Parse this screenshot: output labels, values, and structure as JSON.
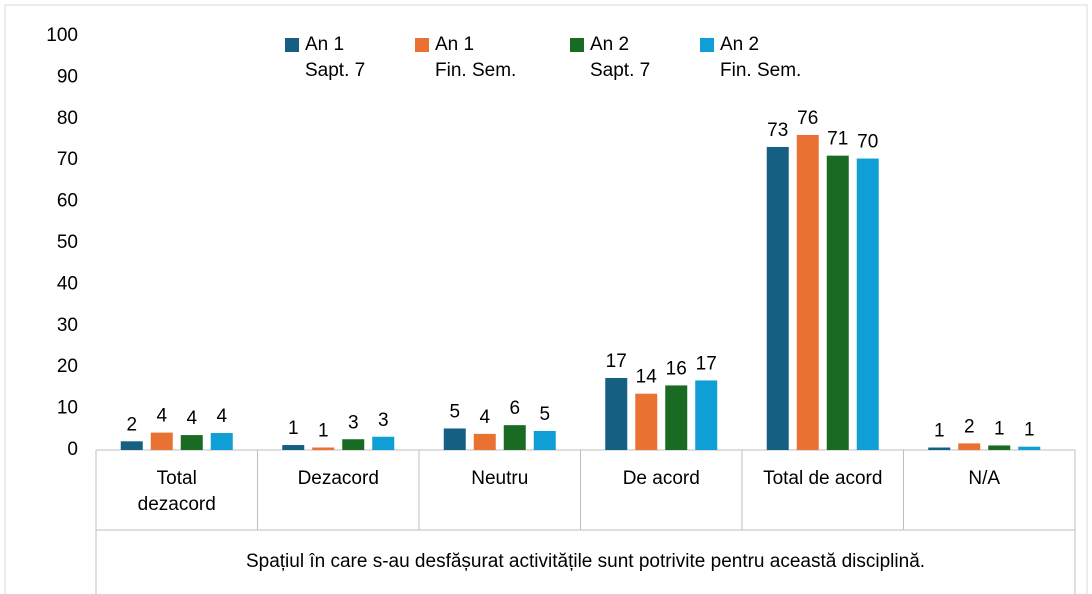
{
  "chart_data": {
    "type": "bar",
    "title": "Spațiul în care s-au desfășurat activitățile sunt potrivite pentru această disciplină.",
    "categories": [
      "Total dezacord",
      "Dezacord",
      "Neutru",
      "De acord",
      "Total de acord",
      "N/A"
    ],
    "series": [
      {
        "name": "An 1\nSapt. 7",
        "color": "#156082",
        "values": [
          2.1,
          1.2,
          5.2,
          17.4,
          73.2,
          0.6
        ],
        "value_labels": [
          "2",
          "1",
          "5",
          "17",
          "73",
          "1"
        ]
      },
      {
        "name": "An 1\nFin. Sem.",
        "color": "#e97132",
        "values": [
          4.2,
          0.6,
          3.9,
          13.6,
          76.1,
          1.6
        ],
        "value_labels": [
          "4",
          "1",
          "4",
          "14",
          "76",
          "2"
        ]
      },
      {
        "name": "An 2\nSapt. 7",
        "color": "#196b24",
        "values": [
          3.6,
          2.6,
          6.0,
          15.6,
          71.1,
          1.1
        ],
        "value_labels": [
          "4",
          "3",
          "6",
          "16",
          "71",
          "1"
        ]
      },
      {
        "name": "An 2\nFin. Sem.",
        "color": "#0f9ed5",
        "values": [
          4.1,
          3.2,
          4.6,
          16.8,
          70.4,
          0.8
        ],
        "value_labels": [
          "4",
          "3",
          "5",
          "17",
          "70",
          "1"
        ]
      }
    ],
    "ylim": [
      0,
      100
    ],
    "yticks": [
      0,
      10,
      20,
      30,
      40,
      50,
      60,
      70,
      80,
      90,
      100
    ],
    "grid": false,
    "legend": "top"
  }
}
